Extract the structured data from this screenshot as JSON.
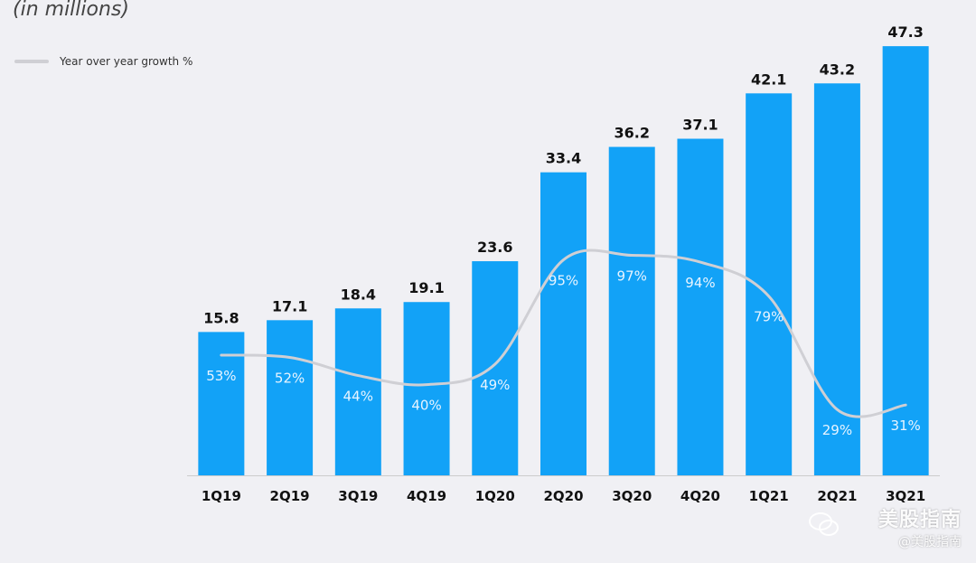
{
  "header": {
    "subtitle": "(in millions)"
  },
  "legend": {
    "line_label": "Year over year growth %"
  },
  "chart_data": {
    "type": "bar",
    "categories": [
      "1Q19",
      "2Q19",
      "3Q19",
      "4Q19",
      "1Q20",
      "2Q20",
      "3Q20",
      "4Q20",
      "1Q21",
      "2Q21",
      "3Q21"
    ],
    "values": [
      15.8,
      17.1,
      18.4,
      19.1,
      23.6,
      33.4,
      36.2,
      37.1,
      42.1,
      43.2,
      47.3
    ],
    "value_labels": [
      "15.8",
      "17.1",
      "18.4",
      "19.1",
      "23.6",
      "33.4",
      "36.2",
      "37.1",
      "42.1",
      "43.2",
      "47.3"
    ],
    "growth": {
      "values": [
        53,
        52,
        44,
        40,
        49,
        95,
        97,
        94,
        79,
        29,
        31
      ],
      "labels": [
        "53%",
        "52%",
        "44%",
        "40%",
        "49%",
        "95%",
        "97%",
        "94%",
        "79%",
        "29%",
        "31%"
      ]
    },
    "ylim": [
      0,
      50
    ],
    "growth_ylim": [
      0,
      200
    ],
    "legend_position": "top-left",
    "grid": false,
    "colors": {
      "bar": "#12a2f7",
      "line": "#cfcfd4",
      "value_label": "#111111",
      "growth_label": "#e8f4ff",
      "axis": "#cccccc"
    }
  },
  "watermark": {
    "line1": "美股指南",
    "line2": "@美股指南"
  }
}
